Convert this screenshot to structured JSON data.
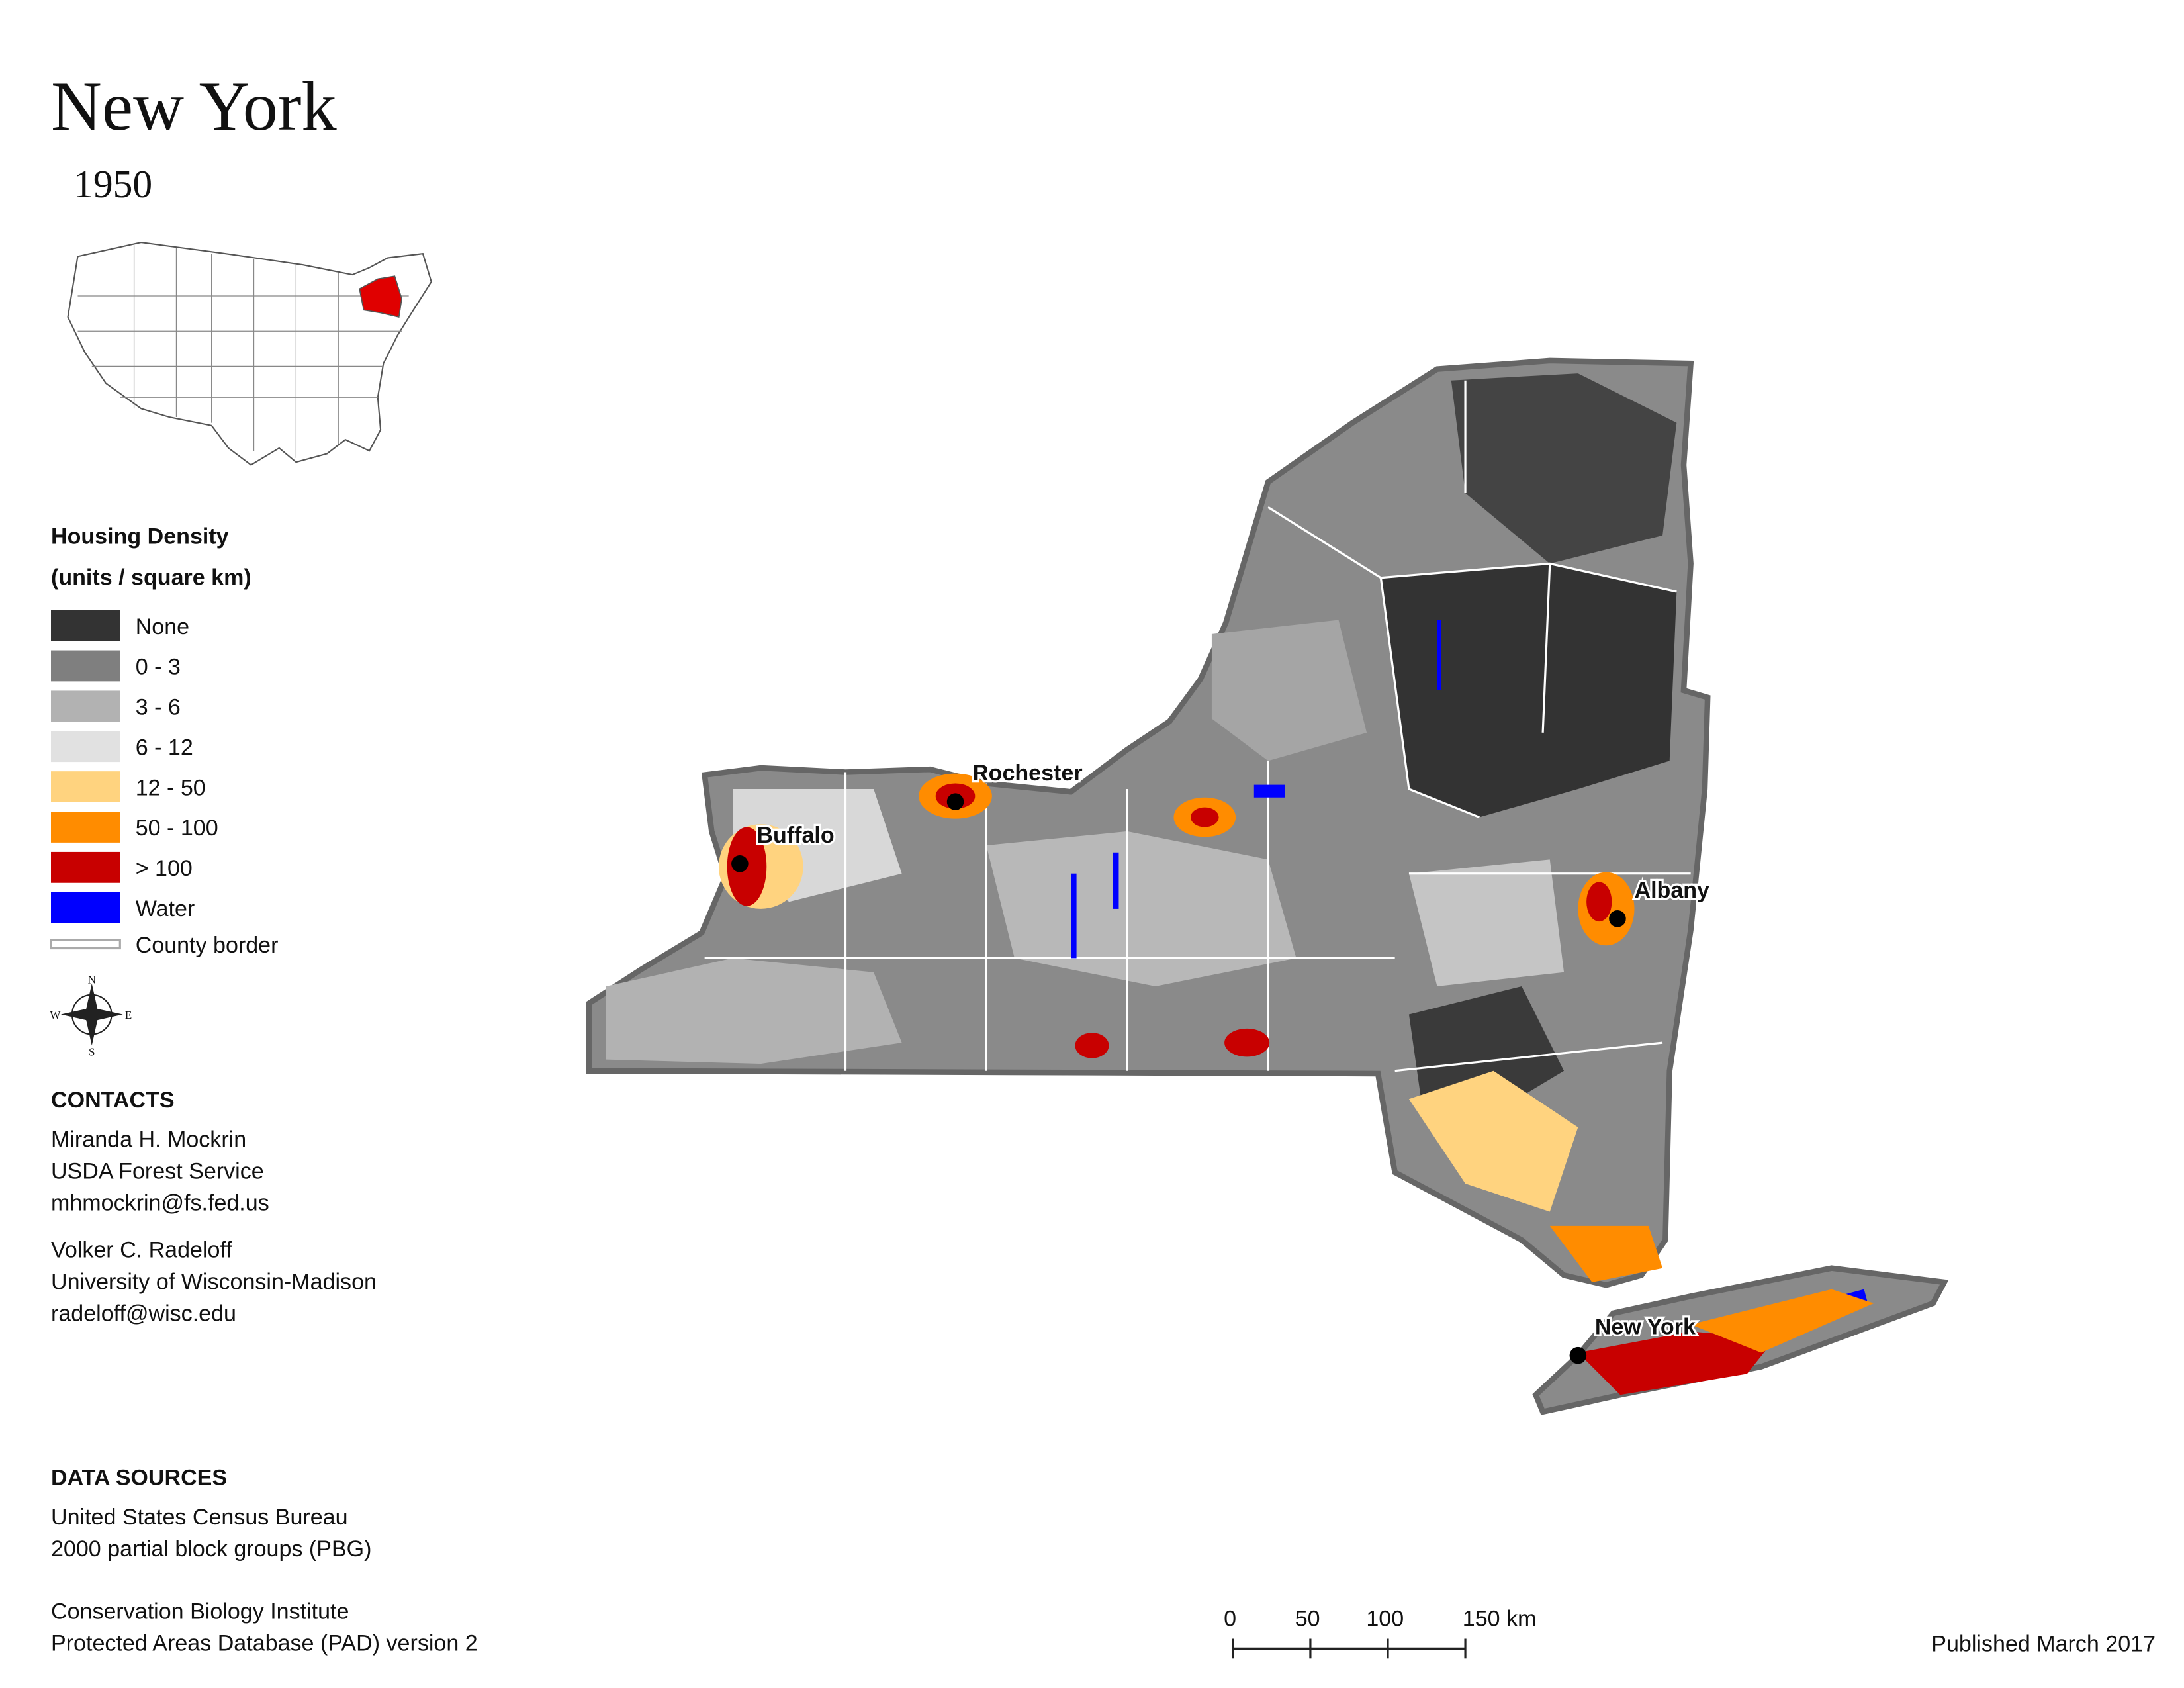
{
  "title": "New York",
  "subtitle": "1950",
  "legend": {
    "title": "Housing Density",
    "subtitle": "(units / square km)",
    "items": [
      {
        "label": "None",
        "color": "#333333"
      },
      {
        "label": "0 - 3",
        "color": "#7f7f7f"
      },
      {
        "label": "3 - 6",
        "color": "#b2b2b2"
      },
      {
        "label": "6 - 12",
        "color": "#e1e1e1"
      },
      {
        "label": "12 - 50",
        "color": "#ffd37f"
      },
      {
        "label": "50 - 100",
        "color": "#ff8c00"
      },
      {
        "label": "> 100",
        "color": "#c80000"
      },
      {
        "label": "Water",
        "color": "#0000ff"
      }
    ],
    "border_label": "County border"
  },
  "compass": {
    "n": "N",
    "e": "E",
    "s": "S",
    "w": "W"
  },
  "cities": [
    "Rochester",
    "Buffalo",
    "Albany",
    "New York"
  ],
  "contacts": {
    "heading": "CONTACTS",
    "people": [
      [
        "Miranda H. Mockrin",
        "USDA Forest Service",
        "mhmockrin@fs.fed.us"
      ],
      [
        "Volker C. Radeloff",
        "University of Wisconsin-Madison",
        "radeloff@wisc.edu"
      ]
    ]
  },
  "data_sources": {
    "heading": "DATA SOURCES",
    "entries": [
      [
        "United States Census Bureau",
        "2000 partial block groups (PBG)"
      ],
      [
        "Conservation Biology Institute",
        "Protected Areas Database (PAD) version 2"
      ]
    ]
  },
  "scale_bar": [
    "0",
    "50",
    "100",
    "150 km"
  ],
  "published": "Published March 2017"
}
